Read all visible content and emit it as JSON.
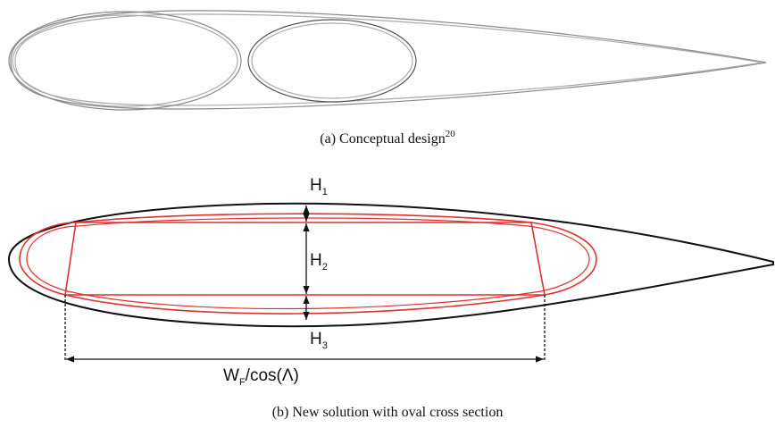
{
  "caption_a": {
    "text": "(a) Conceptual design",
    "sup": "20"
  },
  "caption_b": "(b) New solution with oval cross section",
  "labels": {
    "h1": {
      "text": "H",
      "sub": "1"
    },
    "h2": {
      "text": "H",
      "sub": "2"
    },
    "h3": {
      "text": "H",
      "sub": "3"
    },
    "width": {
      "text": "W",
      "sub": "F",
      "rest": "/cos(Λ)"
    }
  }
}
